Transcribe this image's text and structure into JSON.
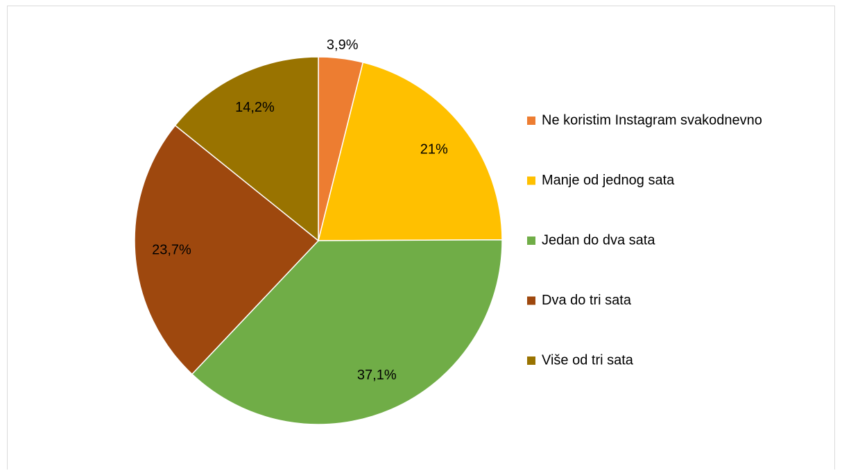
{
  "chart_data": {
    "type": "pie",
    "categories": [
      "Ne koristim Instagram svakodnevno",
      "Manje od jednog sata",
      "Jedan do dva sata",
      "Dva do tri sata",
      "Više od tri sata"
    ],
    "values": [
      3.9,
      21,
      37.1,
      23.7,
      14.2
    ],
    "value_labels": [
      "3,9%",
      "21%",
      "37,1%",
      "23,7%",
      "14,2%"
    ],
    "colors": [
      "#ED7D31",
      "#FFC000",
      "#70AD47",
      "#9E480E",
      "#997300"
    ],
    "legend": "right"
  }
}
